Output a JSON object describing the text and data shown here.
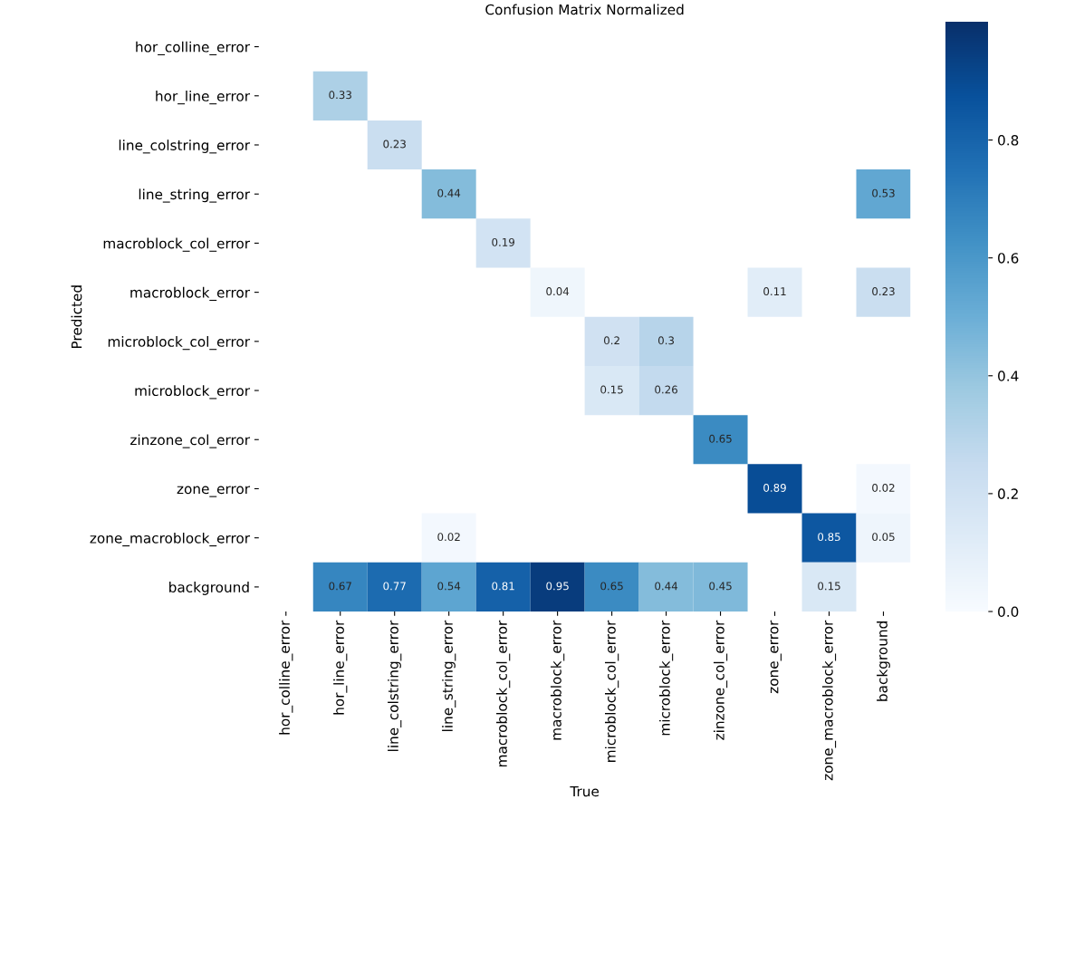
{
  "chart_data": {
    "type": "heatmap",
    "title": "Confusion Matrix Normalized",
    "xlabel": "True",
    "ylabel": "Predicted",
    "categories": [
      "hor_colline_error",
      "hor_line_error",
      "line_colstring_error",
      "line_string_error",
      "macroblock_col_error",
      "macroblock_error",
      "microblock_col_error",
      "microblock_error",
      "zinzone_col_error",
      "zone_error",
      "zone_macroblock_error",
      "background"
    ],
    "y_categories": [
      "hor_colline_error",
      "hor_line_error",
      "line_colstring_error",
      "line_string_error",
      "macroblock_col_error",
      "macroblock_error",
      "microblock_col_error",
      "microblock_error",
      "zinzone_col_error",
      "zone_error",
      "zone_macroblock_error",
      "background"
    ],
    "cells": [
      [
        null,
        null,
        null,
        null,
        null,
        null,
        null,
        null,
        null,
        null,
        null,
        null
      ],
      [
        null,
        0.33,
        null,
        null,
        null,
        null,
        null,
        null,
        null,
        null,
        null,
        null
      ],
      [
        null,
        null,
        0.23,
        null,
        null,
        null,
        null,
        null,
        null,
        null,
        null,
        null
      ],
      [
        null,
        null,
        null,
        0.44,
        null,
        null,
        null,
        null,
        null,
        null,
        null,
        0.53
      ],
      [
        null,
        null,
        null,
        null,
        0.19,
        null,
        null,
        null,
        null,
        null,
        null,
        null
      ],
      [
        null,
        null,
        null,
        null,
        null,
        0.04,
        null,
        null,
        null,
        0.11,
        null,
        0.23
      ],
      [
        null,
        null,
        null,
        null,
        null,
        null,
        0.2,
        0.3,
        null,
        null,
        null,
        null
      ],
      [
        null,
        null,
        null,
        null,
        null,
        null,
        0.15,
        0.26,
        null,
        null,
        null,
        null
      ],
      [
        null,
        null,
        null,
        null,
        null,
        null,
        null,
        null,
        0.65,
        null,
        null,
        null
      ],
      [
        null,
        null,
        null,
        null,
        null,
        null,
        null,
        null,
        null,
        0.89,
        null,
        0.02
      ],
      [
        null,
        null,
        null,
        0.02,
        null,
        null,
        null,
        null,
        null,
        null,
        0.85,
        0.05
      ],
      [
        null,
        0.67,
        0.77,
        0.54,
        0.81,
        0.95,
        0.65,
        0.44,
        0.45,
        null,
        0.15,
        null
      ]
    ],
    "clim": [
      0,
      1.0
    ],
    "cticks": [
      {
        "value": 0,
        "label": "0.0"
      },
      0.2,
      0.4,
      0.6,
      0.8
    ],
    "data_labels": true
  }
}
